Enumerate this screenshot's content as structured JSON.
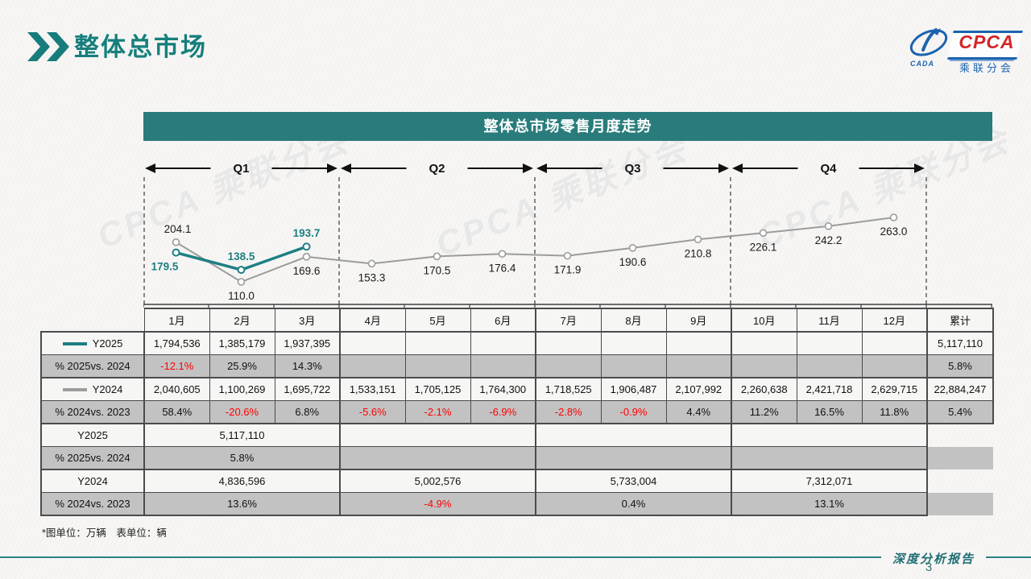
{
  "page": {
    "title": "整体总市场",
    "watermark": "CPCA 乘联分会"
  },
  "logo": {
    "cada": "CADA",
    "acronym": "CPCA",
    "org_name": "乘联分会"
  },
  "colors": {
    "accent_teal": "#157f7d",
    "chart_bar_bg": "#2a7c7c",
    "series_2025": "#1d7f83",
    "series_2024": "#9c9c9c",
    "negative_red": "#ff0000"
  },
  "chart_data": {
    "type": "line",
    "title": "整体总市场零售月度走势",
    "unit": "万辆",
    "categories": [
      "1月",
      "2月",
      "3月",
      "4月",
      "5月",
      "6月",
      "7月",
      "8月",
      "9月",
      "10月",
      "11月",
      "12月"
    ],
    "quarters": [
      "Q1",
      "Q2",
      "Q3",
      "Q4"
    ],
    "ylim": [
      56,
      356
    ],
    "grid": false,
    "legend_position": "table-left",
    "series": [
      {
        "name": "Y2025",
        "color": "#1d7f83",
        "values": [
          179.5,
          138.5,
          193.7
        ],
        "labels": [
          "179.5",
          "138.5",
          "193.7"
        ],
        "label_pos": [
          "below",
          "above",
          "above"
        ]
      },
      {
        "name": "Y2024",
        "color": "#9c9c9c",
        "values": [
          204.1,
          110.0,
          169.6,
          153.3,
          170.5,
          176.4,
          171.9,
          190.6,
          210.8,
          226.1,
          242.2,
          263.0
        ],
        "labels": [
          "204.1",
          "110.0",
          "169.6",
          "153.3",
          "170.5",
          "176.4",
          "171.9",
          "190.6",
          "210.8",
          "226.1",
          "242.2",
          "263.0"
        ],
        "label_pos": [
          "above",
          "below",
          "below",
          "below",
          "below",
          "below",
          "below",
          "below",
          "below",
          "below",
          "below",
          "below"
        ]
      }
    ]
  },
  "table": {
    "months": [
      "1月",
      "2月",
      "3月",
      "4月",
      "5月",
      "6月",
      "7月",
      "8月",
      "9月",
      "10月",
      "11月",
      "12月"
    ],
    "cumulative_label": "累计",
    "monthly_rows": [
      {
        "label": "Y2025",
        "swatch": "#1d7f83",
        "pct": false,
        "cells": [
          "1,794,536",
          "1,385,179",
          "1,937,395",
          "",
          "",
          "",
          "",
          "",
          "",
          "",
          "",
          ""
        ],
        "cumulative": "5,117,110"
      },
      {
        "label": "% 2025vs. 2024",
        "pct": true,
        "cells": [
          "-12.1%",
          "25.9%",
          "14.3%",
          "",
          "",
          "",
          "",
          "",
          "",
          "",
          "",
          ""
        ],
        "cumulative": "5.8%"
      },
      {
        "label": "Y2024",
        "swatch": "#9c9c9c",
        "pct": false,
        "cells": [
          "2,040,605",
          "1,100,269",
          "1,695,722",
          "1,533,151",
          "1,705,125",
          "1,764,300",
          "1,718,525",
          "1,906,487",
          "2,107,992",
          "2,260,638",
          "2,421,718",
          "2,629,715"
        ],
        "cumulative": "22,884,247"
      },
      {
        "label": "% 2024vs. 2023",
        "pct": true,
        "cells": [
          "58.4%",
          "-20.6%",
          "6.8%",
          "-5.6%",
          "-2.1%",
          "-6.9%",
          "-2.8%",
          "-0.9%",
          "4.4%",
          "11.2%",
          "16.5%",
          "11.8%"
        ],
        "cumulative": "5.4%"
      }
    ],
    "quarterly_rows": [
      {
        "label": "Y2025",
        "pct": false,
        "cells": [
          "5,117,110",
          "",
          "",
          ""
        ]
      },
      {
        "label": "% 2025vs. 2024",
        "pct": true,
        "cells": [
          "5.8%",
          "",
          "",
          ""
        ]
      },
      {
        "label": "Y2024",
        "pct": false,
        "cells": [
          "4,836,596",
          "5,002,576",
          "5,733,004",
          "7,312,071"
        ]
      },
      {
        "label": "% 2024vs. 2023",
        "pct": true,
        "cells": [
          "13.6%",
          "-4.9%",
          "0.4%",
          "13.1%"
        ]
      }
    ]
  },
  "footer": {
    "unit_note": "*图单位：万辆　表单位：辆",
    "report_label": "深度分析报告",
    "page_number": "3"
  }
}
